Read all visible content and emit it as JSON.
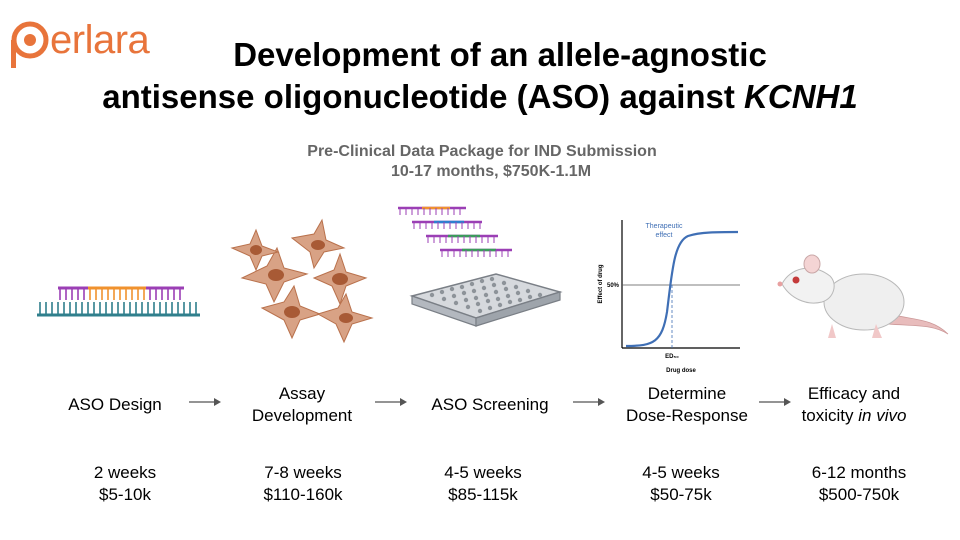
{
  "logo": {
    "text": "erlara"
  },
  "title": {
    "line1": "Development of an allele-agnostic",
    "line2_prefix": "antisense oligonucleotide (ASO) against ",
    "line2_gene": "KCNH1"
  },
  "subtitle": {
    "line1": "Pre-Clinical Data Package for IND Submission",
    "line2": "10-17 months, $750K-1.1M"
  },
  "chart": {
    "ylabel": "Effect of drug",
    "xlabel": "Drug dose",
    "tick_50": "50%",
    "ed50": "ED₅₀",
    "annotation_line1": "Therapeutic",
    "annotation_line2": "effect"
  },
  "steps": [
    {
      "label1": "ASO Design",
      "label2": "",
      "duration": "2 weeks",
      "cost": "$5-10k"
    },
    {
      "label1": "Assay",
      "label2": "Development",
      "duration": "7-8 weeks",
      "cost": "$110-160k"
    },
    {
      "label1": "ASO Screening",
      "label2": "",
      "duration": "4-5 weeks",
      "cost": "$85-115k"
    },
    {
      "label1": "Determine",
      "label2": "Dose-Response",
      "duration": "4-5 weeks",
      "cost": "$50-75k"
    },
    {
      "label1": "Efficacy and",
      "label2_prefix": "toxicity ",
      "label2_italic": "in vivo",
      "duration": "6-12 months",
      "cost": "$500-750k"
    }
  ],
  "colors": {
    "logo": "#e8743b",
    "subtitle": "#666666",
    "aso_strand": "#9b3fb5",
    "aso_orange": "#f0922e",
    "dna_strand": "#2f7f8c",
    "cell": "#d38f6b",
    "curve": "#3f6fb5"
  }
}
